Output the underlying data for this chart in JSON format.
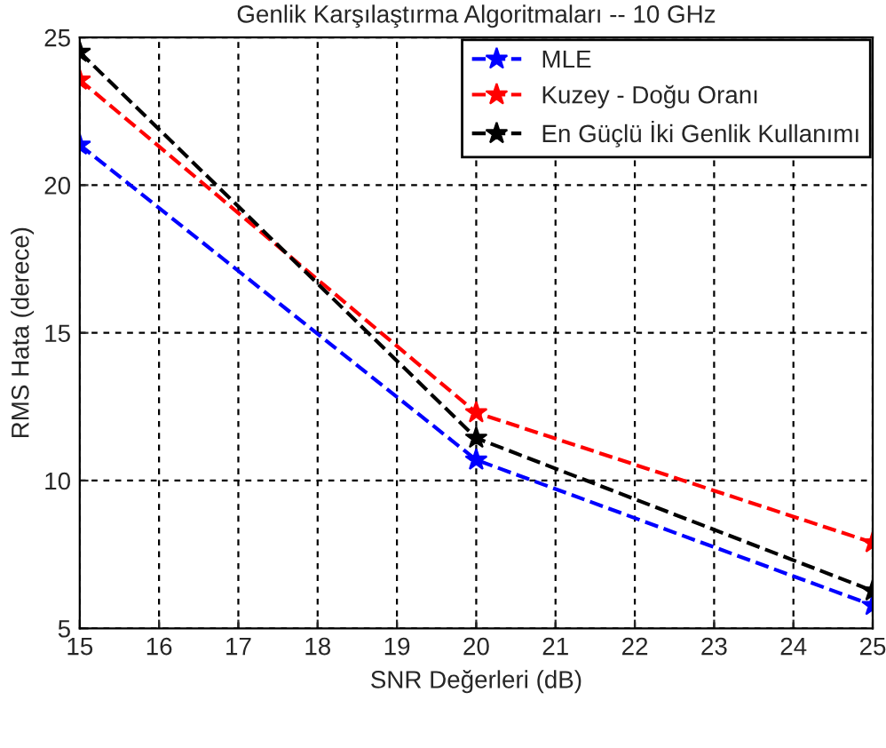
{
  "chart_data": {
    "type": "line",
    "title": "Genlik Karşılaştırma Algoritmaları -- 10 GHz",
    "xlabel": "SNR Değerleri (dB)",
    "ylabel": "RMS Hata (derece)",
    "x": [
      15,
      20,
      25
    ],
    "series": [
      {
        "name": "MLE",
        "color": "#0000ff",
        "values": [
          21.36,
          10.7,
          5.78
        ]
      },
      {
        "name": "Kuzey - Doğu Oranı",
        "color": "#ff0000",
        "values": [
          23.56,
          12.3,
          7.9
        ]
      },
      {
        "name": "En Güçlü İki Genlik Kullanımı",
        "color": "#000000",
        "values": [
          24.5,
          11.44,
          6.27
        ]
      }
    ],
    "xlim": [
      15,
      25
    ],
    "xticks": [
      15,
      16,
      17,
      18,
      19,
      20,
      21,
      22,
      23,
      24,
      25
    ],
    "ylim": [
      5,
      25
    ],
    "yticks": [
      5,
      10,
      15,
      20,
      25
    ],
    "grid": true,
    "legend": "top right",
    "marker": "star",
    "line_style": "dashed"
  }
}
